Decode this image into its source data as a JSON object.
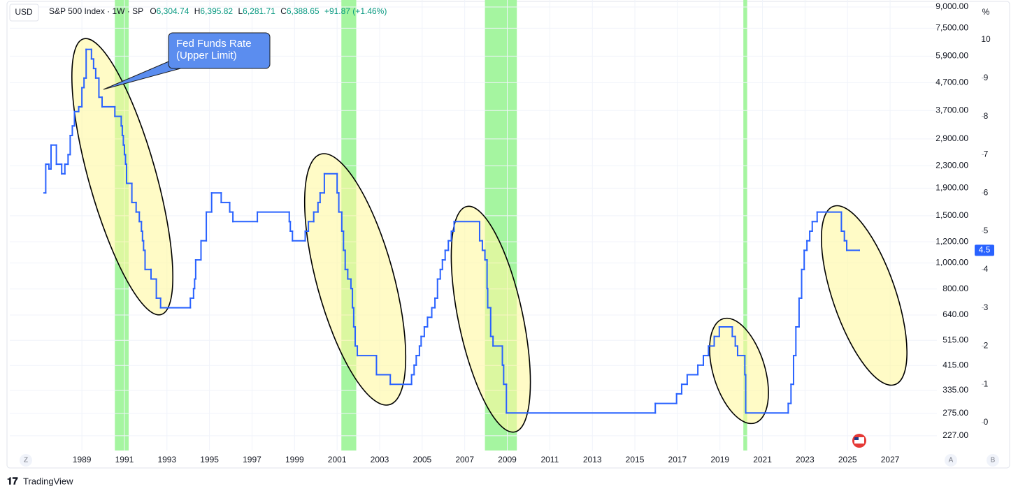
{
  "header": {
    "currency": "USD",
    "symbol": "S&P 500 Index · 1W · SP",
    "open_label": "O",
    "open": "6,304.74",
    "high_label": "H",
    "high": "6,395.82",
    "low_label": "L",
    "low": "6,281.71",
    "close_label": "C",
    "close": "6,388.65",
    "change": "+91.87 (+1.46%)"
  },
  "chart_data": {
    "type": "line",
    "step": true,
    "grid": true,
    "annotation": [
      "Fed Funds Rate",
      "(Upper Limit)"
    ],
    "xlim": [
      1985.61,
      2029.2
    ],
    "xticks": [
      1989,
      1991,
      1993,
      1995,
      1997,
      1999,
      2001,
      2003,
      2005,
      2007,
      2009,
      2011,
      2013,
      2015,
      2017,
      2019,
      2021,
      2023,
      2025,
      2027
    ],
    "ylim": [
      200,
      9553
    ],
    "log_scale": true,
    "yticks": [
      {
        "value": 9000,
        "label": "9,000.00"
      },
      {
        "value": 7500,
        "label": "7,500.00"
      },
      {
        "value": 5900,
        "label": "5,900.00"
      },
      {
        "value": 4700,
        "label": "4,700.00"
      },
      {
        "value": 3700,
        "label": "3,700.00"
      },
      {
        "value": 2900,
        "label": "2,900.00"
      },
      {
        "value": 2300,
        "label": "2,300.00"
      },
      {
        "value": 1900,
        "label": "1,900.00"
      },
      {
        "value": 1500,
        "label": "1,500.00"
      },
      {
        "value": 1200,
        "label": "1,200.00"
      },
      {
        "value": 1000,
        "label": "1,000.00"
      },
      {
        "value": 800,
        "label": "800.00"
      },
      {
        "value": 640,
        "label": "640.00"
      },
      {
        "value": 515,
        "label": "515.00"
      },
      {
        "value": 415,
        "label": "415.00"
      },
      {
        "value": 335,
        "label": "335.00"
      },
      {
        "value": 275,
        "label": "275.00"
      },
      {
        "value": 227,
        "label": "227.00"
      }
    ],
    "y2label": "%",
    "y2lim": [
      -0.73,
      11.04
    ],
    "y2ticks": [
      0,
      1,
      2,
      3,
      4,
      5,
      6,
      7,
      8,
      9,
      10
    ],
    "shaded_periods": [
      [
        1990.55,
        1991.2
      ],
      [
        2001.2,
        2001.9
      ],
      [
        2007.95,
        2009.45
      ],
      [
        2020.1,
        2020.28
      ]
    ],
    "shade_color": "#a5f5a0",
    "x": [
      1987.22,
      1987.3,
      1987.45,
      1987.55,
      1987.8,
      1988.05,
      1988.2,
      1988.35,
      1988.45,
      1988.55,
      1988.65,
      1988.85,
      1989.0,
      1989.1,
      1989.2,
      1989.45,
      1989.55,
      1989.65,
      1989.8,
      1989.95,
      1990.55,
      1990.85,
      1990.9,
      1990.95,
      1991.0,
      1991.05,
      1991.1,
      1991.35,
      1991.55,
      1991.7,
      1991.8,
      1991.85,
      1991.9,
      1991.97,
      1992.25,
      1992.5,
      1992.7,
      1994.1,
      1994.25,
      1994.3,
      1994.35,
      1994.6,
      1994.85,
      1995.1,
      1995.55,
      1995.95,
      1996.1,
      1997.25,
      1998.75,
      1998.8,
      1998.9,
      1999.5,
      1999.65,
      1999.9,
      2000.1,
      2000.2,
      2000.4,
      2001.0,
      2001.08,
      2001.22,
      2001.3,
      2001.38,
      2001.5,
      2001.65,
      2001.72,
      2001.78,
      2001.85,
      2001.95,
      2002.85,
      2003.5,
      2004.5,
      2004.62,
      2004.72,
      2004.87,
      2004.95,
      2005.1,
      2005.25,
      2005.45,
      2005.6,
      2005.72,
      2005.85,
      2005.95,
      2006.08,
      2006.23,
      2006.37,
      2006.5,
      2007.7,
      2007.83,
      2007.95,
      2008.05,
      2008.08,
      2008.22,
      2008.33,
      2008.77,
      2008.83,
      2008.96,
      2015.96,
      2016.96,
      2017.2,
      2017.46,
      2017.96,
      2018.22,
      2018.46,
      2018.73,
      2018.97,
      2019.58,
      2019.72,
      2019.83,
      2020.17,
      2020.21,
      2022.21,
      2022.34,
      2022.46,
      2022.57,
      2022.72,
      2022.84,
      2022.96,
      2023.09,
      2023.22,
      2023.34,
      2023.57,
      2024.71,
      2024.85,
      2024.96,
      2025.55
    ],
    "series": [
      {
        "color": "#2962ff",
        "axis": "y2",
        "values": [
          6.0,
          6.75,
          6.625,
          7.25,
          6.75,
          6.5,
          6.75,
          7.0,
          7.5,
          7.75,
          8.125,
          8.25,
          8.75,
          9.0,
          9.75,
          9.5,
          9.25,
          9.0,
          8.5,
          8.25,
          8.0,
          7.75,
          7.5,
          7.25,
          7.0,
          6.75,
          6.25,
          5.75,
          5.5,
          5.25,
          5.0,
          4.75,
          4.5,
          4.0,
          3.75,
          3.25,
          3.0,
          3.25,
          3.5,
          3.75,
          4.25,
          4.75,
          5.5,
          6.0,
          5.75,
          5.5,
          5.25,
          5.5,
          5.25,
          5.0,
          4.75,
          5.0,
          5.25,
          5.5,
          5.75,
          6.0,
          6.5,
          6.0,
          5.5,
          5.0,
          4.5,
          4.0,
          3.75,
          3.5,
          3.0,
          2.5,
          2.0,
          1.75,
          1.25,
          1.0,
          1.25,
          1.5,
          1.75,
          2.0,
          2.25,
          2.5,
          2.75,
          3.0,
          3.25,
          3.75,
          4.0,
          4.25,
          4.5,
          4.75,
          5.0,
          5.25,
          4.75,
          4.5,
          4.25,
          3.5,
          3.0,
          2.25,
          2.0,
          1.5,
          1.0,
          0.25,
          0.5,
          0.75,
          1.0,
          1.25,
          1.5,
          1.75,
          2.0,
          2.25,
          2.5,
          2.25,
          2.0,
          1.75,
          1.25,
          0.25,
          0.5,
          1.0,
          1.75,
          2.5,
          3.25,
          4.0,
          4.5,
          4.75,
          5.0,
          5.25,
          5.5,
          5.0,
          4.75,
          4.5,
          4.5
        ]
      }
    ]
  },
  "controls": {
    "zoom": "Z",
    "auto": "A",
    "bottom": "B"
  },
  "brand": "TradingView"
}
